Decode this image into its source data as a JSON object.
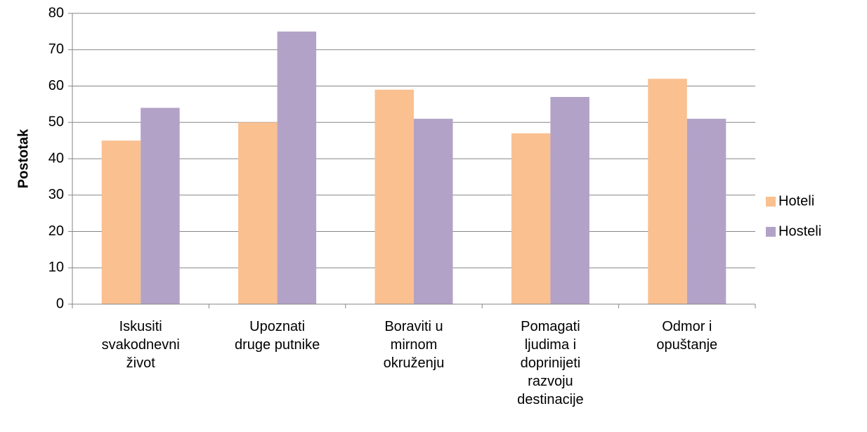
{
  "chart_data": {
    "type": "bar",
    "y_label": "Postotak",
    "categories": [
      "Iskusiti\nsvakodnevni\nživot",
      "Upoznati\ndruge putnike",
      "Boraviti u\nmirnom\nokruženju",
      "Pomagati\nljudima i\ndoprinijeti\nrazvoju\ndestinacije",
      "Odmor i\nopuštanje"
    ],
    "series": [
      {
        "name": "Hoteli",
        "color": "#fac090",
        "values": [
          45,
          50,
          59,
          47,
          62
        ]
      },
      {
        "name": "Hosteli",
        "color": "#b3a2c7",
        "values": [
          54,
          75,
          51,
          57,
          51
        ]
      }
    ],
    "ylim": [
      0,
      80
    ],
    "yticks": [
      0,
      10,
      20,
      30,
      40,
      50,
      60,
      70,
      80
    ],
    "grid": true,
    "legend": "right"
  }
}
